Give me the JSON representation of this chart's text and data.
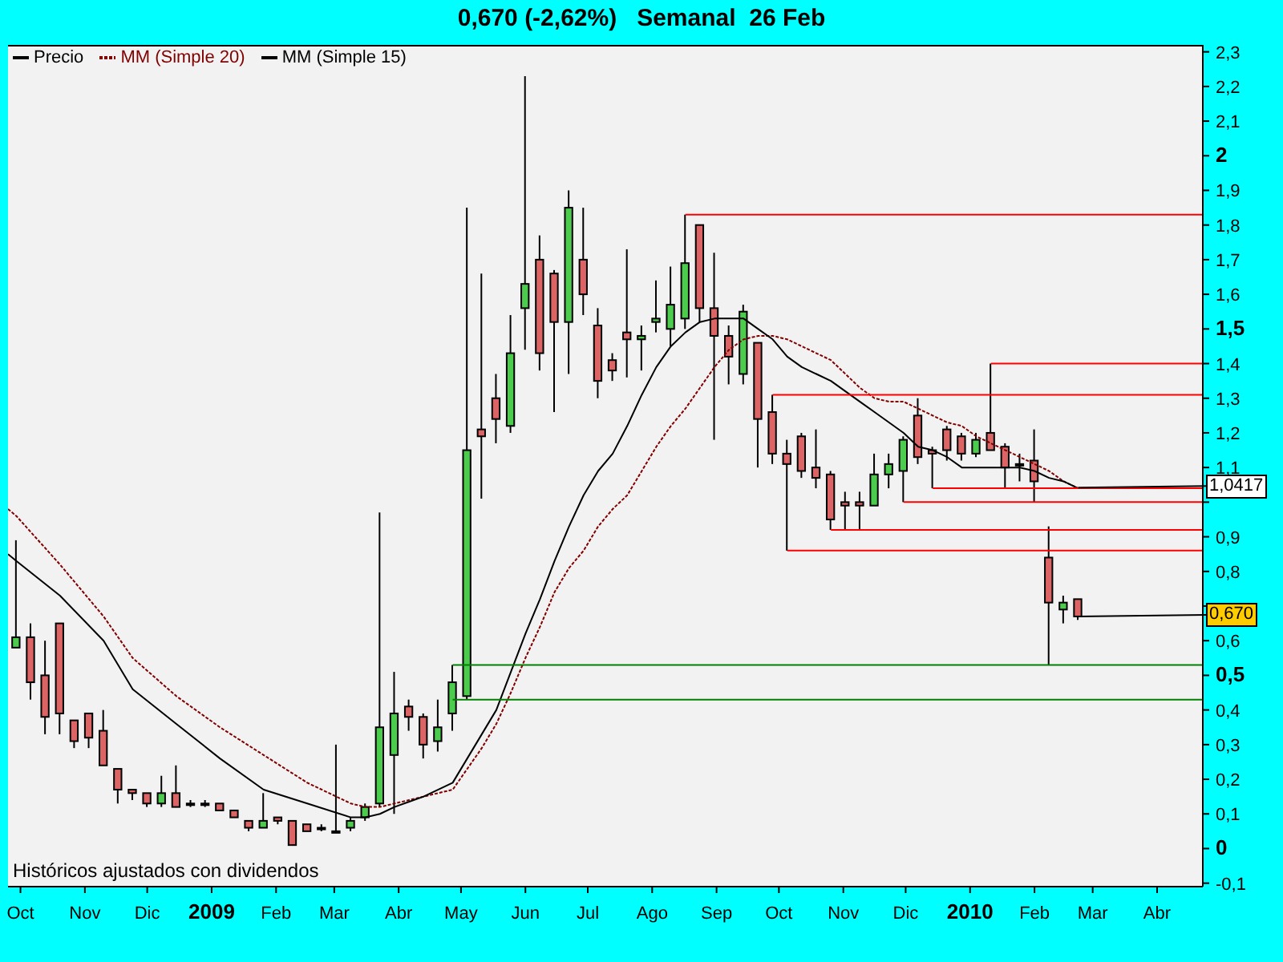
{
  "chart_data": {
    "type": "candlestick",
    "title": "0,670 (-2,62%)   Semanal  26 Feb",
    "x": [
      "2008-09-29",
      "2008-10-06",
      "2008-10-13",
      "2008-10-20",
      "2008-10-27",
      "2008-11-03",
      "2008-11-10",
      "2008-11-17",
      "2008-11-24",
      "2008-12-01",
      "2008-12-08",
      "2008-12-15",
      "2008-12-22",
      "2008-12-29",
      "2009-01-05",
      "2009-01-12",
      "2009-01-19",
      "2009-01-26",
      "2009-02-02",
      "2009-02-09",
      "2009-02-16",
      "2009-02-23",
      "2009-03-02",
      "2009-03-09",
      "2009-03-16",
      "2009-03-23",
      "2009-03-30",
      "2009-04-06",
      "2009-04-13",
      "2009-04-20",
      "2009-04-27",
      "2009-05-04",
      "2009-05-11",
      "2009-05-18",
      "2009-05-25",
      "2009-06-01",
      "2009-06-08",
      "2009-06-15",
      "2009-06-22",
      "2009-06-29",
      "2009-07-06",
      "2009-07-13",
      "2009-07-20",
      "2009-07-27",
      "2009-08-03",
      "2009-08-10",
      "2009-08-17",
      "2009-08-24",
      "2009-08-31",
      "2009-09-07",
      "2009-09-14",
      "2009-09-21",
      "2009-09-28",
      "2009-10-05",
      "2009-10-12",
      "2009-10-19",
      "2009-10-26",
      "2009-11-02",
      "2009-11-09",
      "2009-11-16",
      "2009-11-23",
      "2009-11-30",
      "2009-12-07",
      "2009-12-14",
      "2009-12-21",
      "2009-12-28",
      "2010-01-04",
      "2010-01-11",
      "2010-01-18",
      "2010-01-25",
      "2010-02-01",
      "2010-02-08",
      "2010-02-15",
      "2010-02-22"
    ],
    "xlim": [
      "2008-09-25",
      "2010-04-23"
    ],
    "xticks": [
      {
        "value": "2008-10-01",
        "label": "Oct"
      },
      {
        "value": "2008-11-01",
        "label": "Nov"
      },
      {
        "value": "2008-12-01",
        "label": "Dic"
      },
      {
        "value": "2009-01-01",
        "label": "2009"
      },
      {
        "value": "2009-02-01",
        "label": "Feb"
      },
      {
        "value": "2009-03-01",
        "label": "Mar"
      },
      {
        "value": "2009-04-01",
        "label": "Abr"
      },
      {
        "value": "2009-05-01",
        "label": "May"
      },
      {
        "value": "2009-06-01",
        "label": "Jun"
      },
      {
        "value": "2009-07-01",
        "label": "Jul"
      },
      {
        "value": "2009-08-01",
        "label": "Ago"
      },
      {
        "value": "2009-09-01",
        "label": "Sep"
      },
      {
        "value": "2009-10-01",
        "label": "Oct"
      },
      {
        "value": "2009-11-01",
        "label": "Nov"
      },
      {
        "value": "2009-12-01",
        "label": "Dic"
      },
      {
        "value": "2010-01-01",
        "label": "2010"
      },
      {
        "value": "2010-02-01",
        "label": "Feb"
      },
      {
        "value": "2010-03-01",
        "label": "Mar"
      },
      {
        "value": "2010-04-01",
        "label": "Abr"
      }
    ],
    "ylim": [
      -0.11,
      2.32
    ],
    "yticks": [
      {
        "value": -0.1,
        "label": "-0,1"
      },
      0,
      {
        "value": 0.1,
        "label": "0,1"
      },
      {
        "value": 0.2,
        "label": "0,2"
      },
      {
        "value": 0.3,
        "label": "0,3"
      },
      {
        "value": 0.4,
        "label": "0,4"
      },
      {
        "value": 0.5,
        "label": "0,5"
      },
      {
        "value": 0.6,
        "label": "0,6"
      },
      {
        "value": 0.7,
        "label": null
      },
      {
        "value": 0.8,
        "label": "0,8"
      },
      {
        "value": 0.9,
        "label": "0,9"
      },
      {
        "value": 1,
        "label": null
      },
      {
        "value": 1.1,
        "label": "1,1"
      },
      {
        "value": 1.2,
        "label": "1,2"
      },
      {
        "value": 1.3,
        "label": "1,3"
      },
      {
        "value": 1.4,
        "label": "1,4"
      },
      {
        "value": 1.5,
        "label": "1,5"
      },
      {
        "value": 1.6,
        "label": "1,6"
      },
      {
        "value": 1.7,
        "label": "1,7"
      },
      {
        "value": 1.8,
        "label": "1,8"
      },
      {
        "value": 1.9,
        "label": "1,9"
      },
      2,
      {
        "value": 2.1,
        "label": "2,1"
      },
      {
        "value": 2.2,
        "label": "2,2"
      },
      {
        "value": 2.3,
        "label": "2,3"
      }
    ],
    "legend": "top left",
    "annotations": [
      "Históricos ajustados con dividendos",
      {
        "text": "1,0417",
        "x": "2010-02-22",
        "y": 1.0417
      },
      {
        "text": "0,670",
        "x": "2010-02-22",
        "y": 0.67
      }
    ],
    "series": [
      {
        "name": "Precio",
        "type": "candlestick",
        "color": "#000000",
        "ohlc": [
          [
            0.58,
            0.89,
            0.58,
            0.61
          ],
          [
            0.61,
            0.65,
            0.43,
            0.48
          ],
          [
            0.5,
            0.6,
            0.33,
            0.38
          ],
          [
            0.65,
            0.65,
            0.33,
            0.39
          ],
          [
            0.37,
            0.37,
            0.29,
            0.31
          ],
          [
            0.39,
            0.39,
            0.29,
            0.32
          ],
          [
            0.34,
            0.4,
            0.24,
            0.24
          ],
          [
            0.23,
            0.23,
            0.13,
            0.17
          ],
          [
            0.17,
            0.17,
            0.14,
            0.16
          ],
          [
            0.16,
            0.16,
            0.12,
            0.13
          ],
          [
            0.13,
            0.21,
            0.12,
            0.16
          ],
          [
            0.16,
            0.24,
            0.12,
            0.12
          ],
          [
            0.13,
            0.14,
            0.12,
            0.13
          ],
          [
            0.13,
            0.14,
            0.12,
            0.13
          ],
          [
            0.13,
            0.13,
            0.11,
            0.11
          ],
          [
            0.11,
            0.11,
            0.09,
            0.09
          ],
          [
            0.08,
            0.08,
            0.05,
            0.06
          ],
          [
            0.06,
            0.16,
            0.06,
            0.08
          ],
          [
            0.09,
            0.09,
            0.07,
            0.08
          ],
          [
            0.08,
            0.08,
            0.01,
            0.01
          ],
          [
            0.07,
            0.07,
            0.05,
            0.05
          ],
          [
            0.06,
            0.07,
            0.05,
            0.06
          ],
          [
            0.05,
            0.3,
            0.05,
            0.05
          ],
          [
            0.06,
            0.09,
            0.05,
            0.08
          ],
          [
            0.09,
            0.13,
            0.08,
            0.12
          ],
          [
            0.13,
            0.97,
            0.12,
            0.35
          ],
          [
            0.27,
            0.51,
            0.1,
            0.39
          ],
          [
            0.41,
            0.43,
            0.34,
            0.38
          ],
          [
            0.38,
            0.39,
            0.26,
            0.3
          ],
          [
            0.31,
            0.43,
            0.28,
            0.35
          ],
          [
            0.39,
            0.53,
            0.34,
            0.48
          ],
          [
            0.44,
            1.85,
            0.43,
            1.15
          ],
          [
            1.21,
            1.66,
            1.01,
            1.19
          ],
          [
            1.3,
            1.37,
            1.17,
            1.24
          ],
          [
            1.22,
            1.54,
            1.2,
            1.43
          ],
          [
            1.56,
            2.23,
            1.44,
            1.63
          ],
          [
            1.7,
            1.77,
            1.38,
            1.43
          ],
          [
            1.66,
            1.67,
            1.26,
            1.52
          ],
          [
            1.52,
            1.9,
            1.37,
            1.85
          ],
          [
            1.7,
            1.85,
            1.54,
            1.6
          ],
          [
            1.51,
            1.56,
            1.3,
            1.35
          ],
          [
            1.41,
            1.43,
            1.35,
            1.38
          ],
          [
            1.49,
            1.73,
            1.36,
            1.47
          ],
          [
            1.47,
            1.51,
            1.38,
            1.48
          ],
          [
            1.52,
            1.64,
            1.49,
            1.53
          ],
          [
            1.5,
            1.68,
            1.45,
            1.57
          ],
          [
            1.53,
            1.83,
            1.5,
            1.69
          ],
          [
            1.8,
            1.8,
            1.52,
            1.56
          ],
          [
            1.56,
            1.72,
            1.18,
            1.48
          ],
          [
            1.48,
            1.51,
            1.34,
            1.42
          ],
          [
            1.37,
            1.57,
            1.34,
            1.55
          ],
          [
            1.46,
            1.46,
            1.1,
            1.24
          ],
          [
            1.26,
            1.31,
            1.11,
            1.14
          ],
          [
            1.14,
            1.18,
            0.86,
            1.11
          ],
          [
            1.19,
            1.2,
            1.07,
            1.09
          ],
          [
            1.1,
            1.21,
            1.04,
            1.07
          ],
          [
            1.08,
            1.09,
            0.92,
            0.95
          ],
          [
            1.0,
            1.03,
            0.92,
            0.99
          ],
          [
            1.0,
            1.03,
            0.92,
            0.99
          ],
          [
            0.99,
            1.14,
            0.99,
            1.08
          ],
          [
            1.08,
            1.14,
            1.04,
            1.11
          ],
          [
            1.09,
            1.19,
            1.0,
            1.18
          ],
          [
            1.25,
            1.3,
            1.11,
            1.13
          ],
          [
            1.15,
            1.16,
            1.04,
            1.14
          ],
          [
            1.21,
            1.22,
            1.12,
            1.15
          ],
          [
            1.19,
            1.2,
            1.12,
            1.14
          ],
          [
            1.14,
            1.2,
            1.13,
            1.18
          ],
          [
            1.2,
            1.4,
            1.15,
            1.15
          ],
          [
            1.16,
            1.17,
            1.04,
            1.1
          ],
          [
            1.11,
            1.14,
            1.06,
            1.11
          ],
          [
            1.12,
            1.21,
            1.0,
            1.06
          ],
          [
            0.84,
            0.93,
            0.53,
            0.71
          ],
          [
            0.69,
            0.73,
            0.65,
            0.71
          ],
          [
            0.72,
            0.72,
            0.66,
            0.67
          ]
        ],
        "colors": [
          "#4ccc4c",
          "#dc6464",
          "#dc6464",
          "#dc6464",
          "#dc6464",
          "#dc6464",
          "#dc6464",
          "#dc6464",
          "#dc6464",
          "#dc6464",
          "#4ccc4c",
          "#dc6464",
          "#000000",
          "#000000",
          "#dc6464",
          "#dc6464",
          "#dc6464",
          "#4ccc4c",
          "#dc6464",
          "#dc6464",
          "#dc6464",
          "#000000",
          "#000000",
          "#4ccc4c",
          "#4ccc4c",
          "#4ccc4c",
          "#4ccc4c",
          "#dc6464",
          "#dc6464",
          "#4ccc4c",
          "#4ccc4c",
          "#4ccc4c",
          "#dc6464",
          "#dc6464",
          "#4ccc4c",
          "#4ccc4c",
          "#dc6464",
          "#dc6464",
          "#4ccc4c",
          "#dc6464",
          "#dc6464",
          "#dc6464",
          "#dc6464",
          "#4ccc4c",
          "#4ccc4c",
          "#4ccc4c",
          "#4ccc4c",
          "#dc6464",
          "#dc6464",
          "#dc6464",
          "#4ccc4c",
          "#dc6464",
          "#dc6464",
          "#dc6464",
          "#dc6464",
          "#dc6464",
          "#dc6464",
          "#dc6464",
          "#dc6464",
          "#4ccc4c",
          "#4ccc4c",
          "#4ccc4c",
          "#dc6464",
          "#dc6464",
          "#dc6464",
          "#dc6464",
          "#4ccc4c",
          "#dc6464",
          "#dc6464",
          "#000000",
          "#dc6464",
          "#dc6464",
          "#4ccc4c",
          "#dc6464"
        ]
      },
      {
        "name": "MM (Simple 20)",
        "type": "line",
        "color": "#800000",
        "line_style": "dashed",
        "x": [
          "2008-09-25",
          "2008-09-29",
          "2008-10-20",
          "2008-11-10",
          "2008-11-24",
          "2008-12-15",
          "2009-01-05",
          "2009-01-26",
          "2009-02-16",
          "2009-03-09",
          "2009-03-16",
          "2009-03-23",
          "2009-03-30",
          "2009-04-13",
          "2009-04-27",
          "2009-05-04",
          "2009-05-11",
          "2009-05-18",
          "2009-05-25",
          "2009-06-01",
          "2009-06-08",
          "2009-06-15",
          "2009-06-22",
          "2009-06-29",
          "2009-07-06",
          "2009-07-13",
          "2009-07-20",
          "2009-07-27",
          "2009-08-03",
          "2009-08-10",
          "2009-08-17",
          "2009-08-24",
          "2009-08-31",
          "2009-09-07",
          "2009-09-14",
          "2009-09-21",
          "2009-09-28",
          "2009-10-05",
          "2009-10-12",
          "2009-10-19",
          "2009-10-26",
          "2009-11-02",
          "2009-11-09",
          "2009-11-16",
          "2009-11-23",
          "2009-11-30",
          "2009-12-07",
          "2009-12-14",
          "2009-12-21",
          "2009-12-28",
          "2010-01-04",
          "2010-01-11",
          "2010-01-18",
          "2010-01-25",
          "2010-02-01",
          "2010-02-08",
          "2010-02-15",
          "2010-02-22"
        ],
        "values": [
          0.98,
          0.96,
          0.82,
          0.67,
          0.55,
          0.44,
          0.35,
          0.27,
          0.19,
          0.13,
          0.12,
          0.12,
          0.13,
          0.15,
          0.17,
          0.23,
          0.29,
          0.36,
          0.45,
          0.55,
          0.64,
          0.74,
          0.81,
          0.86,
          0.93,
          0.98,
          1.02,
          1.09,
          1.16,
          1.22,
          1.27,
          1.33,
          1.39,
          1.44,
          1.47,
          1.48,
          1.48,
          1.47,
          1.45,
          1.43,
          1.41,
          1.37,
          1.33,
          1.3,
          1.29,
          1.29,
          1.27,
          1.25,
          1.23,
          1.22,
          1.19,
          1.17,
          1.15,
          1.13,
          1.11,
          1.09,
          1.06,
          1.04
        ]
      },
      {
        "name": "MM (Simple 15)",
        "type": "line",
        "color": "#000000",
        "x": [
          "2008-09-25",
          "2008-09-29",
          "2008-10-20",
          "2008-11-10",
          "2008-11-24",
          "2008-12-15",
          "2009-01-05",
          "2009-01-26",
          "2009-02-16",
          "2009-03-09",
          "2009-03-16",
          "2009-03-23",
          "2009-03-30",
          "2009-04-13",
          "2009-04-27",
          "2009-05-04",
          "2009-05-18",
          "2009-05-25",
          "2009-06-01",
          "2009-06-08",
          "2009-06-15",
          "2009-06-22",
          "2009-06-29",
          "2009-07-06",
          "2009-07-13",
          "2009-07-20",
          "2009-07-27",
          "2009-08-03",
          "2009-08-10",
          "2009-08-17",
          "2009-08-24",
          "2009-08-31",
          "2009-09-07",
          "2009-09-14",
          "2009-09-21",
          "2009-09-28",
          "2009-10-05",
          "2009-10-12",
          "2009-10-19",
          "2009-10-26",
          "2009-11-02",
          "2009-11-09",
          "2009-11-16",
          "2009-11-23",
          "2009-11-30",
          "2009-12-07",
          "2009-12-14",
          "2009-12-21",
          "2009-12-28",
          "2010-01-04",
          "2010-01-11",
          "2010-01-18",
          "2010-01-25",
          "2010-02-01",
          "2010-02-08",
          "2010-02-15",
          "2010-02-22"
        ],
        "values": [
          0.85,
          0.83,
          0.73,
          0.6,
          0.46,
          0.36,
          0.26,
          0.17,
          0.13,
          0.09,
          0.09,
          0.1,
          0.12,
          0.15,
          0.19,
          0.26,
          0.4,
          0.51,
          0.62,
          0.72,
          0.83,
          0.93,
          1.02,
          1.09,
          1.14,
          1.22,
          1.31,
          1.39,
          1.45,
          1.49,
          1.52,
          1.53,
          1.53,
          1.53,
          1.5,
          1.47,
          1.42,
          1.39,
          1.37,
          1.35,
          1.32,
          1.29,
          1.26,
          1.23,
          1.2,
          1.16,
          1.15,
          1.13,
          1.1,
          1.1,
          1.1,
          1.1,
          1.1,
          1.09,
          1.07,
          1.06,
          1.04
        ]
      },
      {
        "type": "line",
        "color": "#ff0000",
        "x": [
          "2009-08-17",
          "2010-04-23"
        ],
        "values": [
          1.83,
          1.83
        ]
      },
      {
        "type": "line",
        "color": "#ff0000",
        "x": [
          "2010-01-11",
          "2010-04-23"
        ],
        "values": [
          1.4,
          1.4
        ]
      },
      {
        "type": "line",
        "color": "#ff0000",
        "x": [
          "2009-09-28",
          "2010-04-23"
        ],
        "values": [
          1.31,
          1.31
        ]
      },
      {
        "type": "line",
        "color": "#ff0000",
        "x": [
          "2009-12-14",
          "2010-04-23"
        ],
        "values": [
          1.04,
          1.04
        ]
      },
      {
        "type": "line",
        "color": "#ff0000",
        "x": [
          "2009-11-30",
          "2010-04-23"
        ],
        "values": [
          1.0,
          1.0
        ]
      },
      {
        "type": "line",
        "color": "#ff0000",
        "x": [
          "2009-10-26",
          "2010-04-23"
        ],
        "values": [
          0.92,
          0.92
        ]
      },
      {
        "type": "line",
        "color": "#ff0000",
        "x": [
          "2009-10-05",
          "2010-04-23"
        ],
        "values": [
          0.86,
          0.86
        ]
      },
      {
        "type": "line",
        "color": "#008000",
        "x": [
          "2009-04-27",
          "2010-04-23"
        ],
        "values": [
          0.53,
          0.53
        ]
      },
      {
        "type": "line",
        "color": "#008000",
        "x": [
          "2009-04-27",
          "2010-04-23"
        ],
        "values": [
          0.43,
          0.43
        ]
      }
    ]
  }
}
